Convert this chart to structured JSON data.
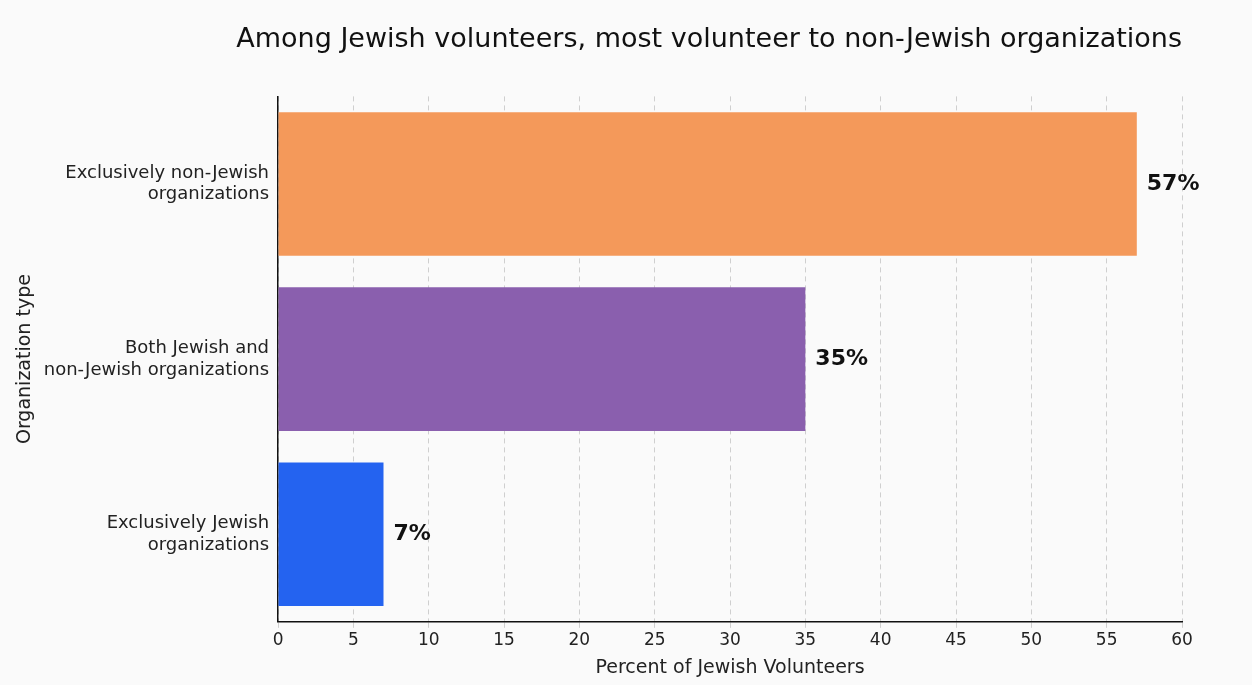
{
  "chart_data": {
    "type": "bar",
    "orientation": "horizontal",
    "title": "Among Jewish volunteers, most volunteer to non-Jewish organizations",
    "xlabel": "Percent of Jewish Volunteers",
    "ylabel": "Organization type",
    "categories": [
      "Exclusively non-Jewish organizations",
      "Both Jewish and non-Jewish organizations",
      "Exclusively Jewish organizations"
    ],
    "values": [
      57,
      35,
      7
    ],
    "value_labels": [
      "57%",
      "35%",
      "7%"
    ],
    "colors": [
      "#f4995a",
      "#8a5fae",
      "#2463f0"
    ],
    "xlim": [
      0,
      60
    ],
    "xticks": [
      0,
      5,
      10,
      15,
      20,
      25,
      30,
      35,
      40,
      45,
      50,
      55,
      60
    ],
    "grid": "x",
    "legend": false
  }
}
